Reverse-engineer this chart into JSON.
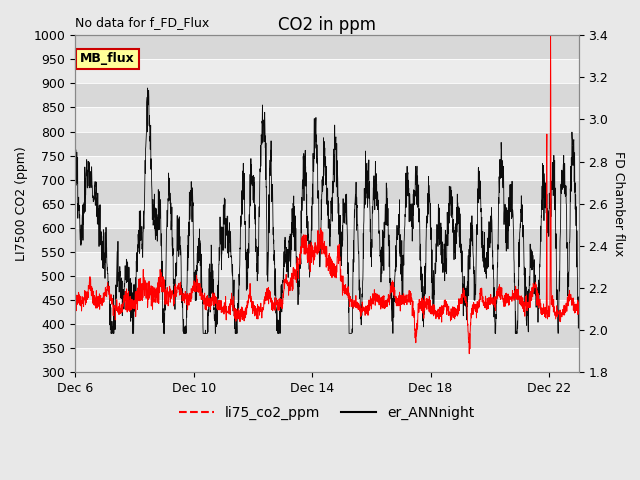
{
  "title": "CO2 in ppm",
  "top_left_text": "No data for f_FD_Flux",
  "ylabel_left": "LI7500 CO2 (ppm)",
  "ylabel_right": "FD Chamber flux",
  "ylim_left": [
    300,
    1000
  ],
  "ylim_right": [
    1.8,
    3.4
  ],
  "yticks_left": [
    300,
    350,
    400,
    450,
    500,
    550,
    600,
    650,
    700,
    750,
    800,
    850,
    900,
    950,
    1000
  ],
  "yticks_right": [
    1.8,
    2.0,
    2.2,
    2.4,
    2.6,
    2.8,
    3.0,
    3.2,
    3.4
  ],
  "xtick_labels": [
    "Dec 6",
    "Dec 10",
    "Dec 14",
    "Dec 18",
    "Dec 22"
  ],
  "xtick_positions": [
    0,
    4,
    8,
    12,
    16
  ],
  "xlim": [
    0,
    17
  ],
  "bg_color": "#e8e8e8",
  "plot_bg_color": "#e0e0e0",
  "band_color_light": "#ececec",
  "band_color_dark": "#d8d8d8",
  "line_red_color": "#ff0000",
  "line_black_color": "#000000",
  "legend_label_red": "li75_co2_ppm",
  "legend_label_black": "er_ANNnight",
  "mb_flux_label": "MB_flux",
  "mb_flux_bg": "#ffff99",
  "mb_flux_border": "#cc0000",
  "title_fontsize": 12,
  "axis_fontsize": 9,
  "tick_fontsize": 9,
  "legend_fontsize": 10,
  "annotation_fontsize": 9
}
